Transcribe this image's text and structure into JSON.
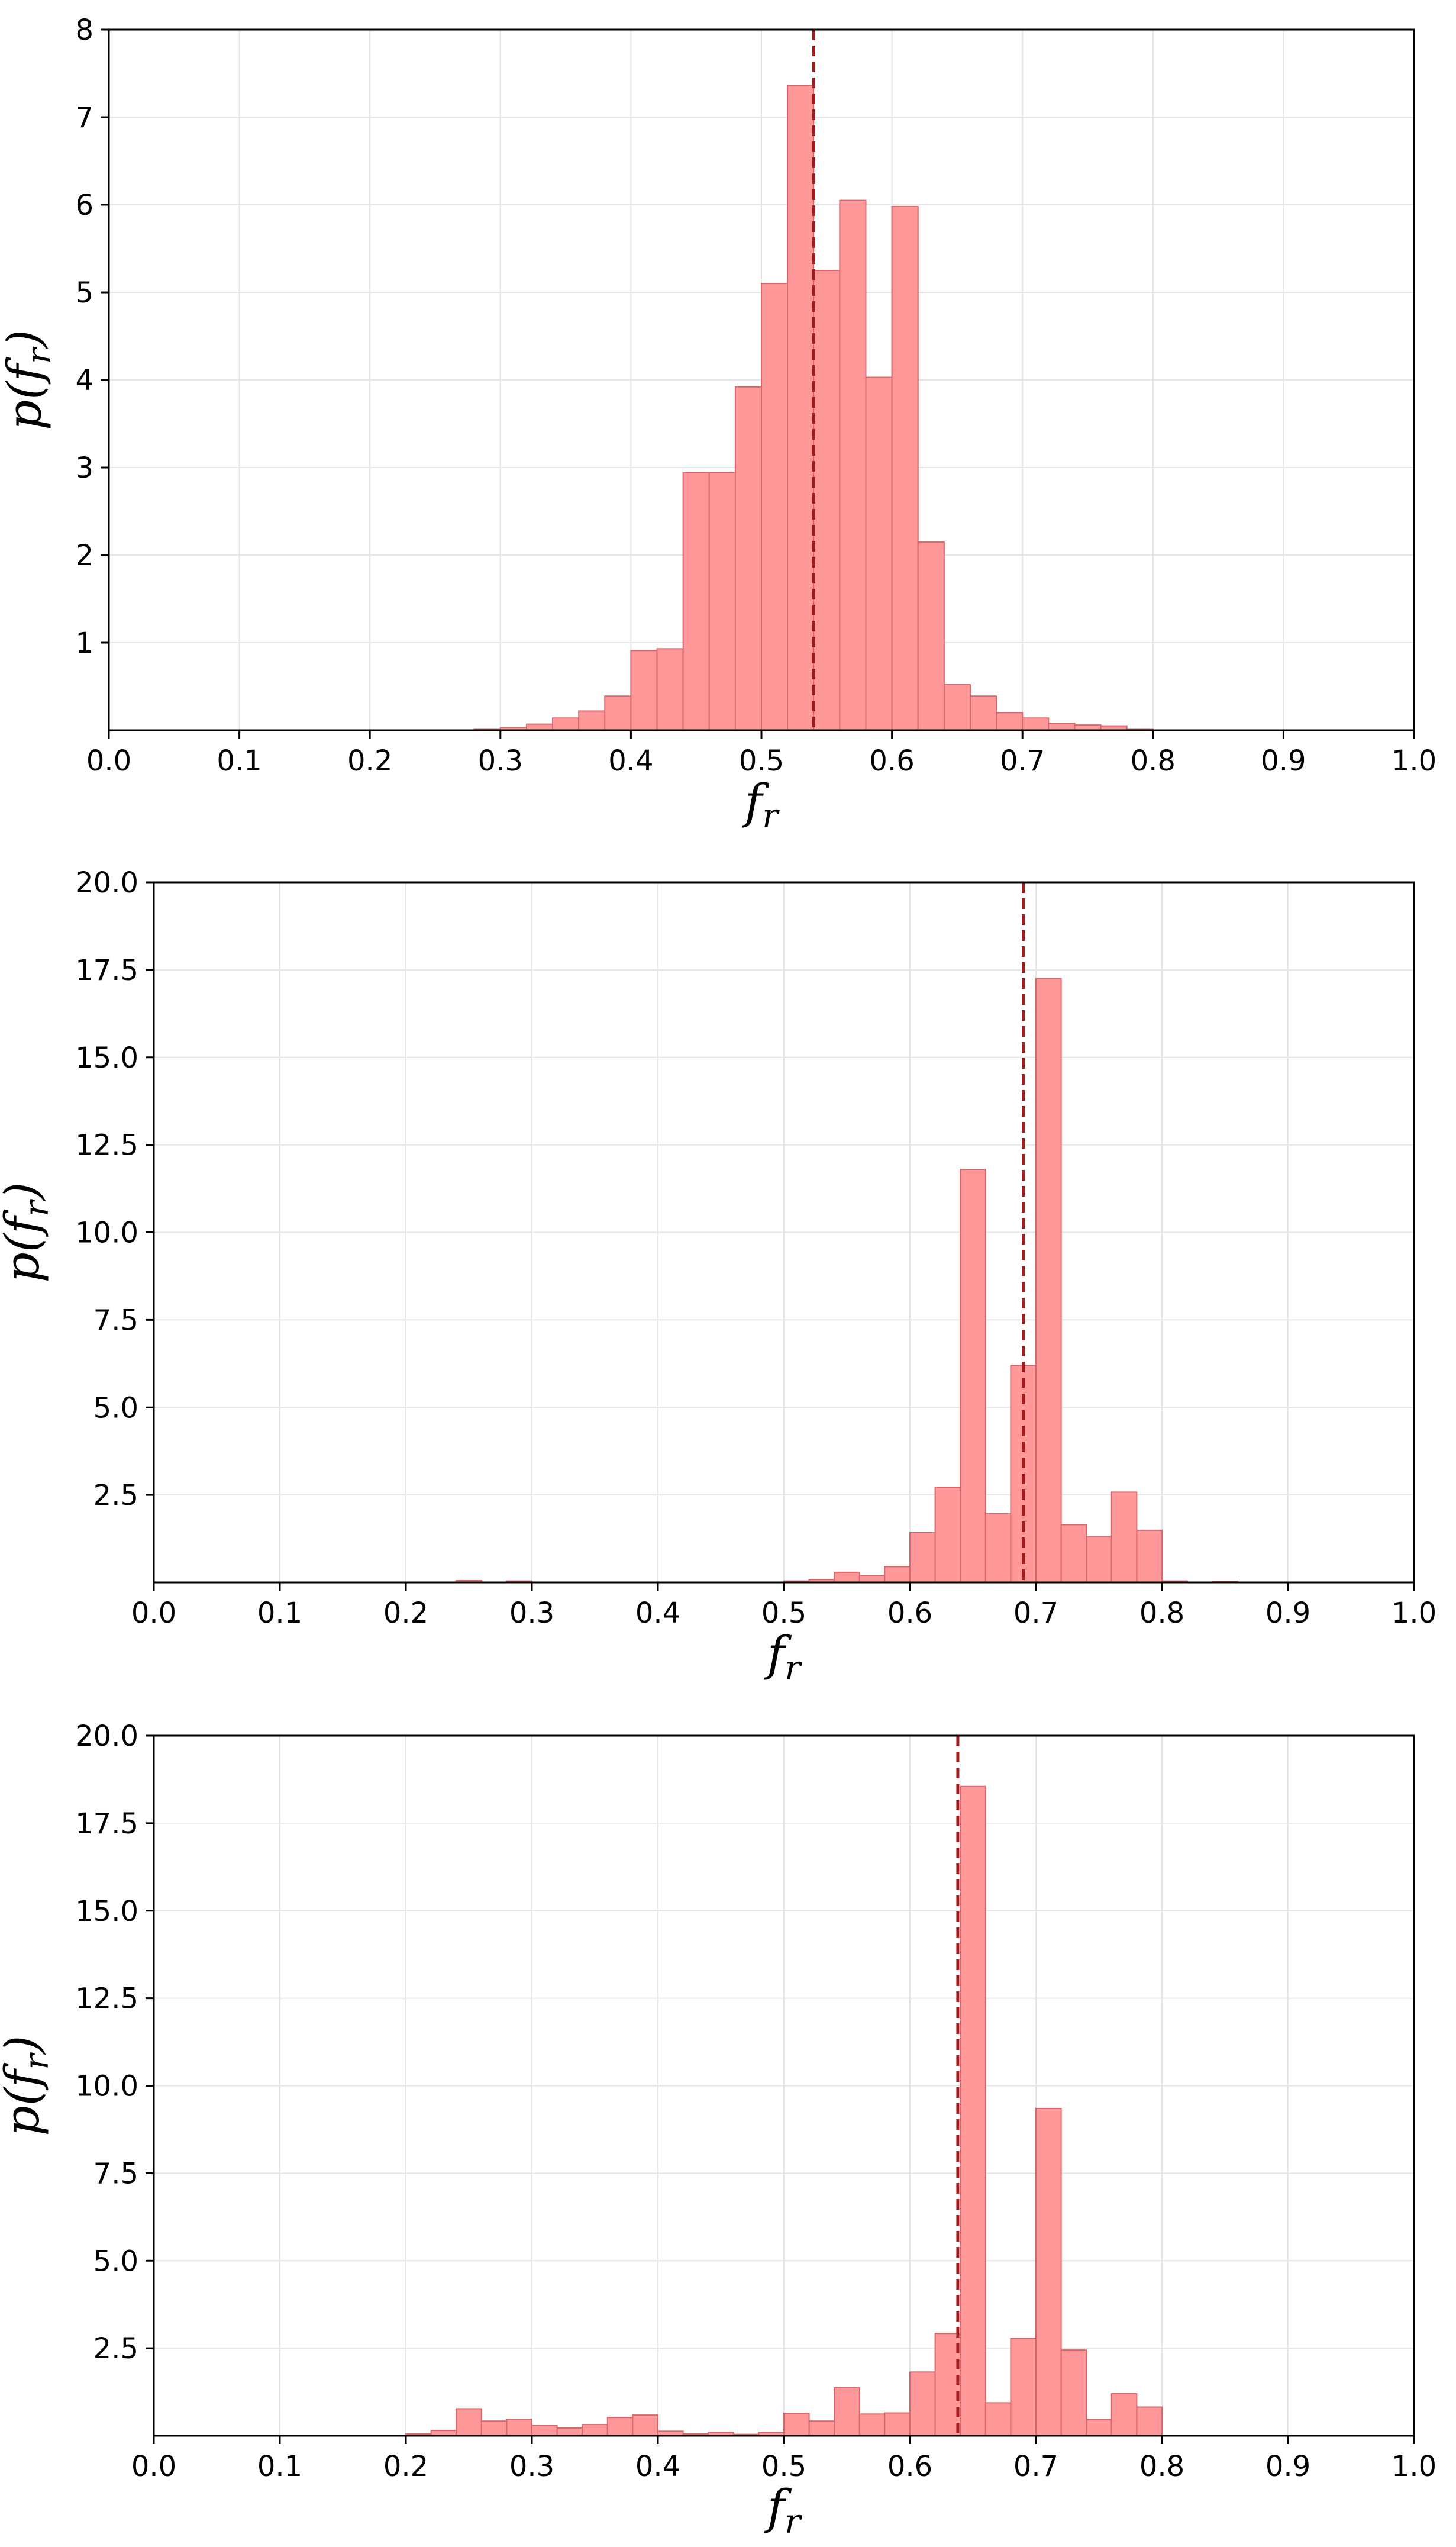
{
  "chart_data": [
    {
      "type": "histogram",
      "xlabel": "f",
      "xlabel_sub": "r",
      "ylabel_pre": "p(f",
      "ylabel_sub": "r",
      "ylabel_post": ")",
      "xlim": [
        0.0,
        1.0
      ],
      "ylim": [
        0,
        8
      ],
      "xticks": [
        "0.0",
        "0.1",
        "0.2",
        "0.3",
        "0.4",
        "0.5",
        "0.6",
        "0.7",
        "0.8",
        "0.9",
        "1.0"
      ],
      "yticks": [
        {
          "v": 1,
          "t": "1"
        },
        {
          "v": 2,
          "t": "2"
        },
        {
          "v": 3,
          "t": "3"
        },
        {
          "v": 4,
          "t": "4"
        },
        {
          "v": 5,
          "t": "5"
        },
        {
          "v": 6,
          "t": "6"
        },
        {
          "v": 7,
          "t": "7"
        },
        {
          "v": 8,
          "t": "8"
        }
      ],
      "grid": true,
      "bin_width": 0.02,
      "bins": [
        {
          "x0": 0.28,
          "h": 0.01
        },
        {
          "x0": 0.3,
          "h": 0.03
        },
        {
          "x0": 0.32,
          "h": 0.07
        },
        {
          "x0": 0.34,
          "h": 0.14
        },
        {
          "x0": 0.36,
          "h": 0.22
        },
        {
          "x0": 0.38,
          "h": 0.39
        },
        {
          "x0": 0.4,
          "h": 0.91
        },
        {
          "x0": 0.42,
          "h": 0.93
        },
        {
          "x0": 0.44,
          "h": 2.94
        },
        {
          "x0": 0.46,
          "h": 2.94
        },
        {
          "x0": 0.48,
          "h": 3.92
        },
        {
          "x0": 0.5,
          "h": 5.1
        },
        {
          "x0": 0.52,
          "h": 7.36
        },
        {
          "x0": 0.54,
          "h": 5.25
        },
        {
          "x0": 0.56,
          "h": 6.05
        },
        {
          "x0": 0.58,
          "h": 4.03
        },
        {
          "x0": 0.6,
          "h": 5.98
        },
        {
          "x0": 0.62,
          "h": 2.15
        },
        {
          "x0": 0.64,
          "h": 0.52
        },
        {
          "x0": 0.66,
          "h": 0.39
        },
        {
          "x0": 0.68,
          "h": 0.2
        },
        {
          "x0": 0.7,
          "h": 0.14
        },
        {
          "x0": 0.72,
          "h": 0.08
        },
        {
          "x0": 0.74,
          "h": 0.06
        },
        {
          "x0": 0.76,
          "h": 0.05
        },
        {
          "x0": 0.78,
          "h": 0.01
        }
      ],
      "vline_x": 0.54,
      "bar_color": "#ff9999",
      "bar_edge": "#d9666b",
      "vline_color": "#a01c1c"
    },
    {
      "type": "histogram",
      "xlabel": "f",
      "xlabel_sub": "r",
      "ylabel_pre": "p(f",
      "ylabel_sub": "r",
      "ylabel_post": ")",
      "xlim": [
        0.0,
        1.0
      ],
      "ylim": [
        0,
        20
      ],
      "xticks": [
        "0.0",
        "0.1",
        "0.2",
        "0.3",
        "0.4",
        "0.5",
        "0.6",
        "0.7",
        "0.8",
        "0.9",
        "1.0"
      ],
      "yticks": [
        {
          "v": 2.5,
          "t": "2.5"
        },
        {
          "v": 5.0,
          "t": "5.0"
        },
        {
          "v": 7.5,
          "t": "7.5"
        },
        {
          "v": 10.0,
          "t": "10.0"
        },
        {
          "v": 12.5,
          "t": "12.5"
        },
        {
          "v": 15.0,
          "t": "15.0"
        },
        {
          "v": 17.5,
          "t": "17.5"
        },
        {
          "v": 20.0,
          "t": "20.0"
        }
      ],
      "grid": true,
      "bin_width": 0.02,
      "bins": [
        {
          "x0": 0.24,
          "h": 0.05
        },
        {
          "x0": 0.28,
          "h": 0.04
        },
        {
          "x0": 0.5,
          "h": 0.04
        },
        {
          "x0": 0.52,
          "h": 0.08
        },
        {
          "x0": 0.54,
          "h": 0.29
        },
        {
          "x0": 0.56,
          "h": 0.2
        },
        {
          "x0": 0.58,
          "h": 0.45
        },
        {
          "x0": 0.6,
          "h": 1.42
        },
        {
          "x0": 0.62,
          "h": 2.72
        },
        {
          "x0": 0.64,
          "h": 11.8
        },
        {
          "x0": 0.66,
          "h": 1.96
        },
        {
          "x0": 0.68,
          "h": 6.2
        },
        {
          "x0": 0.7,
          "h": 17.25
        },
        {
          "x0": 0.72,
          "h": 1.65
        },
        {
          "x0": 0.74,
          "h": 1.3
        },
        {
          "x0": 0.76,
          "h": 2.58
        },
        {
          "x0": 0.78,
          "h": 1.49
        },
        {
          "x0": 0.8,
          "h": 0.04
        },
        {
          "x0": 0.84,
          "h": 0.03
        }
      ],
      "vline_x": 0.69,
      "bar_color": "#ff9999",
      "bar_edge": "#d9666b",
      "vline_color": "#a01c1c"
    },
    {
      "type": "histogram",
      "xlabel": "f",
      "xlabel_sub": "r",
      "ylabel_pre": "p(f",
      "ylabel_sub": "r",
      "ylabel_post": ")",
      "xlim": [
        0.0,
        1.0
      ],
      "ylim": [
        0,
        20
      ],
      "xticks": [
        "0.0",
        "0.1",
        "0.2",
        "0.3",
        "0.4",
        "0.5",
        "0.6",
        "0.7",
        "0.8",
        "0.9",
        "1.0"
      ],
      "yticks": [
        {
          "v": 2.5,
          "t": "2.5"
        },
        {
          "v": 5.0,
          "t": "5.0"
        },
        {
          "v": 7.5,
          "t": "7.5"
        },
        {
          "v": 10.0,
          "t": "10.0"
        },
        {
          "v": 12.5,
          "t": "12.5"
        },
        {
          "v": 15.0,
          "t": "15.0"
        },
        {
          "v": 17.5,
          "t": "17.5"
        },
        {
          "v": 20.0,
          "t": "20.0"
        }
      ],
      "grid": true,
      "bin_width": 0.02,
      "bins": [
        {
          "x0": 0.2,
          "h": 0.05
        },
        {
          "x0": 0.22,
          "h": 0.15
        },
        {
          "x0": 0.24,
          "h": 0.77
        },
        {
          "x0": 0.26,
          "h": 0.42
        },
        {
          "x0": 0.28,
          "h": 0.47
        },
        {
          "x0": 0.3,
          "h": 0.3
        },
        {
          "x0": 0.32,
          "h": 0.22
        },
        {
          "x0": 0.34,
          "h": 0.32
        },
        {
          "x0": 0.36,
          "h": 0.52
        },
        {
          "x0": 0.38,
          "h": 0.59
        },
        {
          "x0": 0.4,
          "h": 0.13
        },
        {
          "x0": 0.42,
          "h": 0.05
        },
        {
          "x0": 0.44,
          "h": 0.09
        },
        {
          "x0": 0.46,
          "h": 0.04
        },
        {
          "x0": 0.48,
          "h": 0.09
        },
        {
          "x0": 0.5,
          "h": 0.64
        },
        {
          "x0": 0.52,
          "h": 0.42
        },
        {
          "x0": 0.54,
          "h": 1.37
        },
        {
          "x0": 0.56,
          "h": 0.62
        },
        {
          "x0": 0.58,
          "h": 0.65
        },
        {
          "x0": 0.6,
          "h": 1.82
        },
        {
          "x0": 0.62,
          "h": 2.92
        },
        {
          "x0": 0.64,
          "h": 18.55
        },
        {
          "x0": 0.66,
          "h": 0.94
        },
        {
          "x0": 0.68,
          "h": 2.78
        },
        {
          "x0": 0.7,
          "h": 9.35
        },
        {
          "x0": 0.72,
          "h": 2.45
        },
        {
          "x0": 0.74,
          "h": 0.46
        },
        {
          "x0": 0.76,
          "h": 1.2
        },
        {
          "x0": 0.78,
          "h": 0.82
        }
      ],
      "vline_x": 0.638,
      "bar_color": "#ff9999",
      "bar_edge": "#d9666b",
      "vline_color": "#a01c1c"
    }
  ]
}
